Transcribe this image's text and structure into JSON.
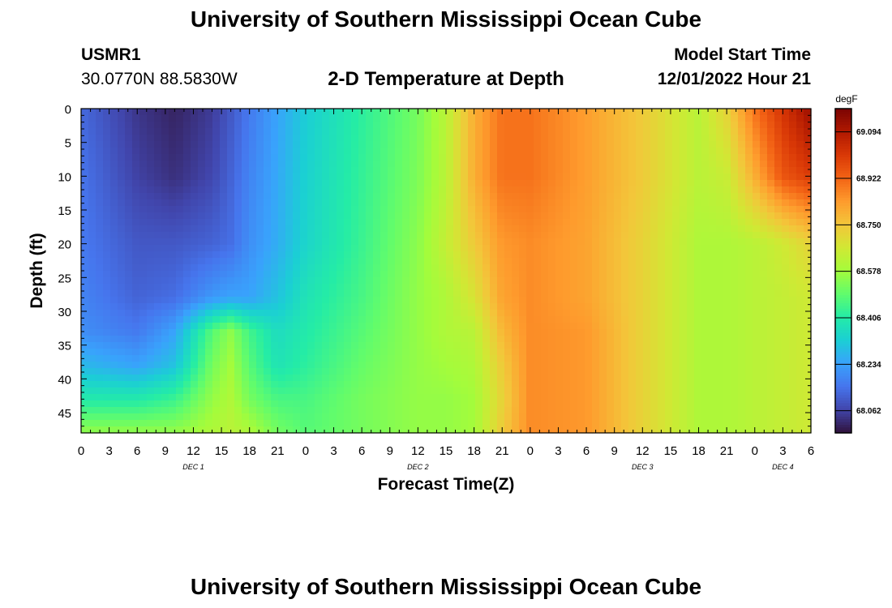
{
  "header": {
    "title": "University of Southern Mississippi Ocean Cube",
    "station_id": "USMR1",
    "coordinates": "30.0770N  88.5830W",
    "plot_title": "2-D Temperature at Depth",
    "model_start_label": "Model Start Time",
    "model_start_value": "12/01/2022 Hour 21"
  },
  "footer": {
    "title": "University of Southern Mississippi Ocean Cube"
  },
  "chart_data": {
    "type": "heatmap",
    "title": "2-D Temperature at Depth",
    "xlabel": "Forecast Time(Z)",
    "ylabel": "Depth (ft)",
    "x_range_hours": [
      0,
      78
    ],
    "x_tick_hours": [
      0,
      3,
      6,
      9,
      12,
      15,
      18,
      21,
      24,
      27,
      30,
      33,
      36,
      39,
      42,
      45,
      48,
      51,
      54,
      57,
      60,
      63,
      66,
      69,
      72,
      75,
      78
    ],
    "x_tick_labels": [
      "0",
      "3",
      "6",
      "9",
      "12",
      "15",
      "18",
      "21",
      "0",
      "3",
      "6",
      "9",
      "12",
      "15",
      "18",
      "21",
      "0",
      "3",
      "6",
      "9",
      "12",
      "15",
      "18",
      "21",
      "0",
      "3",
      "6"
    ],
    "day_labels": [
      {
        "label": "DEC 1",
        "hour": 12
      },
      {
        "label": "DEC 2",
        "hour": 36
      },
      {
        "label": "DEC 3",
        "hour": 60
      },
      {
        "label": "DEC 4",
        "hour": 75
      }
    ],
    "y_range_ft": [
      0,
      48
    ],
    "y_tick_values": [
      0,
      5,
      10,
      15,
      20,
      25,
      30,
      35,
      40,
      45
    ],
    "y_tick_labels": [
      "0",
      "5",
      "10",
      "15",
      "20",
      "25",
      "30",
      "35",
      "40",
      "45"
    ],
    "colorbar": {
      "unit": "degF",
      "min": 67.98,
      "max": 69.18,
      "tick_values": [
        69.094,
        68.922,
        68.75,
        68.578,
        68.406,
        68.234,
        68.062
      ],
      "tick_labels": [
        "69.094",
        "68.922",
        "68.750",
        "68.578",
        "68.406",
        "68.234",
        "68.062"
      ],
      "colormap": [
        "#30123b",
        "#4145ab",
        "#4675ed",
        "#39a2fc",
        "#1bcfd4",
        "#24eca6",
        "#61fc6c",
        "#a4fc3b",
        "#d1e834",
        "#f3c63a",
        "#fe9b2d",
        "#f36315",
        "#d93806",
        "#b11901",
        "#7a0403"
      ]
    },
    "depth_levels_ft": [
      0,
      10,
      20,
      28,
      33,
      38,
      43,
      48
    ],
    "hours": [
      0,
      6,
      10,
      14,
      16,
      18,
      21,
      24,
      30,
      36,
      39,
      42,
      45,
      48,
      54,
      60,
      66,
      69,
      72,
      75,
      78
    ],
    "temperature_grid_degF": [
      [
        68.13,
        68.04,
        68.01,
        68.05,
        68.1,
        68.16,
        68.24,
        68.32,
        68.42,
        68.52,
        68.62,
        68.8,
        68.9,
        68.9,
        68.83,
        68.74,
        68.62,
        68.72,
        68.9,
        69.02,
        69.13
      ],
      [
        68.15,
        68.06,
        68.03,
        68.07,
        68.12,
        68.18,
        68.25,
        68.33,
        68.43,
        68.53,
        68.62,
        68.8,
        68.9,
        68.9,
        68.83,
        68.74,
        68.62,
        68.65,
        68.8,
        68.95,
        69.0
      ],
      [
        68.16,
        68.1,
        68.1,
        68.12,
        68.14,
        68.2,
        68.26,
        68.34,
        68.44,
        68.55,
        68.64,
        68.74,
        68.84,
        68.86,
        68.82,
        68.72,
        68.6,
        68.6,
        68.62,
        68.66,
        68.72
      ],
      [
        68.18,
        68.12,
        68.14,
        68.22,
        68.24,
        68.24,
        68.3,
        68.38,
        68.46,
        68.56,
        68.6,
        68.68,
        68.82,
        68.86,
        68.82,
        68.72,
        68.6,
        68.6,
        68.62,
        68.64,
        68.66
      ],
      [
        68.2,
        68.16,
        68.24,
        68.48,
        68.55,
        68.45,
        68.36,
        68.4,
        68.48,
        68.56,
        68.6,
        68.62,
        68.78,
        68.86,
        68.84,
        68.72,
        68.6,
        68.6,
        68.62,
        68.64,
        68.66
      ],
      [
        68.28,
        68.24,
        68.3,
        68.52,
        68.58,
        68.48,
        68.38,
        68.42,
        68.5,
        68.56,
        68.58,
        68.6,
        68.74,
        68.86,
        68.84,
        68.72,
        68.6,
        68.6,
        68.62,
        68.64,
        68.66
      ],
      [
        68.4,
        68.4,
        68.44,
        68.56,
        68.6,
        68.52,
        68.46,
        68.46,
        68.52,
        68.56,
        68.56,
        68.58,
        68.72,
        68.86,
        68.84,
        68.72,
        68.6,
        68.6,
        68.62,
        68.64,
        68.66
      ],
      [
        68.56,
        68.56,
        68.56,
        68.6,
        68.62,
        68.6,
        68.52,
        68.48,
        68.52,
        68.56,
        68.56,
        68.58,
        68.74,
        68.86,
        68.84,
        68.72,
        68.6,
        68.6,
        68.62,
        68.64,
        68.66
      ]
    ]
  }
}
